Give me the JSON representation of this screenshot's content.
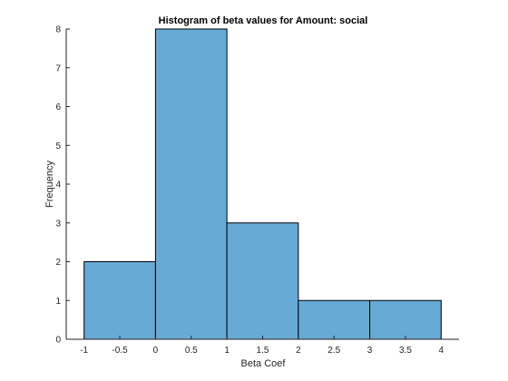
{
  "chart_data": {
    "type": "bar",
    "subtype": "histogram",
    "title": "Histogram of beta values for Amount: social",
    "xlabel": "Beta Coef",
    "ylabel": "Frequency",
    "bin_edges": [
      -1,
      0,
      1,
      2,
      3,
      4
    ],
    "values": [
      2,
      8,
      3,
      1,
      1
    ],
    "xlim": [
      -1.25,
      4.25
    ],
    "ylim": [
      0,
      8
    ],
    "xticks": [
      -1,
      -0.5,
      0,
      0.5,
      1,
      1.5,
      2,
      2.5,
      3,
      3.5,
      4
    ],
    "xtick_labels": [
      "-1",
      "-0.5",
      "0",
      "0.5",
      "1",
      "1.5",
      "2",
      "2.5",
      "3",
      "3.5",
      "4"
    ],
    "yticks": [
      0,
      1,
      2,
      3,
      4,
      5,
      6,
      7,
      8
    ],
    "ytick_labels": [
      "0",
      "1",
      "2",
      "3",
      "4",
      "5",
      "6",
      "7",
      "8"
    ],
    "bar_color": "#68aad6",
    "edge_color": "#000000",
    "grid": false,
    "legend": "none"
  }
}
